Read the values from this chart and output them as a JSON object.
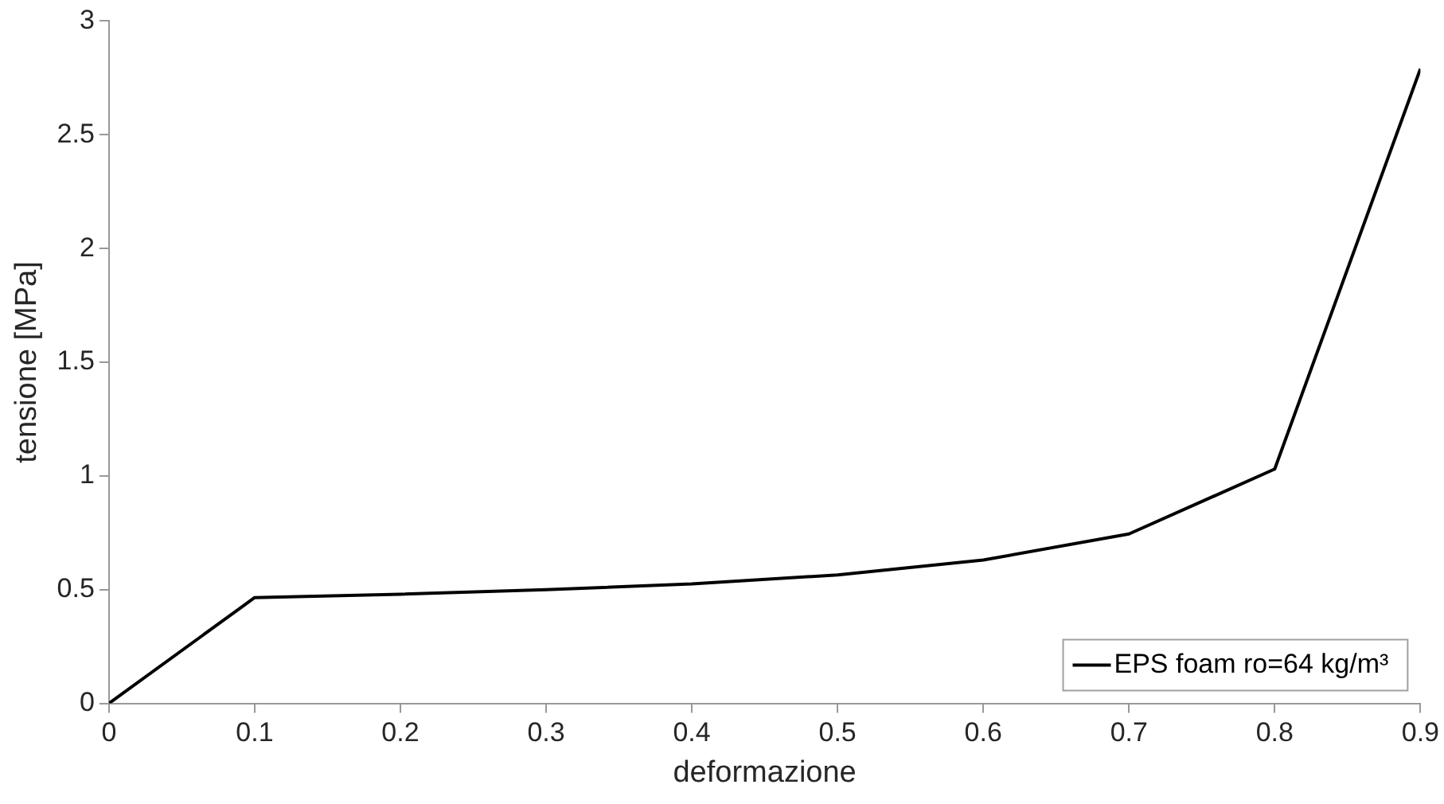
{
  "chart_data": {
    "type": "line",
    "xlabel": "deformazione",
    "ylabel": "tensione [MPa]",
    "x": [
      0,
      0.1,
      0.2,
      0.3,
      0.4,
      0.5,
      0.6,
      0.7,
      0.8,
      0.9
    ],
    "series": [
      {
        "name": "EPS foam ro=64 kg/m³",
        "color": "#000000",
        "values": [
          0,
          0.465,
          0.48,
          0.5,
          0.525,
          0.565,
          0.63,
          0.745,
          1.03,
          2.79
        ]
      }
    ],
    "xlim": [
      0,
      0.9
    ],
    "xticks": [
      0,
      0.1,
      0.2,
      0.3,
      0.4,
      0.5,
      0.6,
      0.7,
      0.8,
      0.9
    ],
    "ylim": [
      0,
      3
    ],
    "yticks": [
      0,
      0.5,
      1,
      1.5,
      2,
      2.5,
      3
    ],
    "grid": false,
    "legend": "bottom right",
    "marker": "none",
    "line_style": "solid"
  }
}
